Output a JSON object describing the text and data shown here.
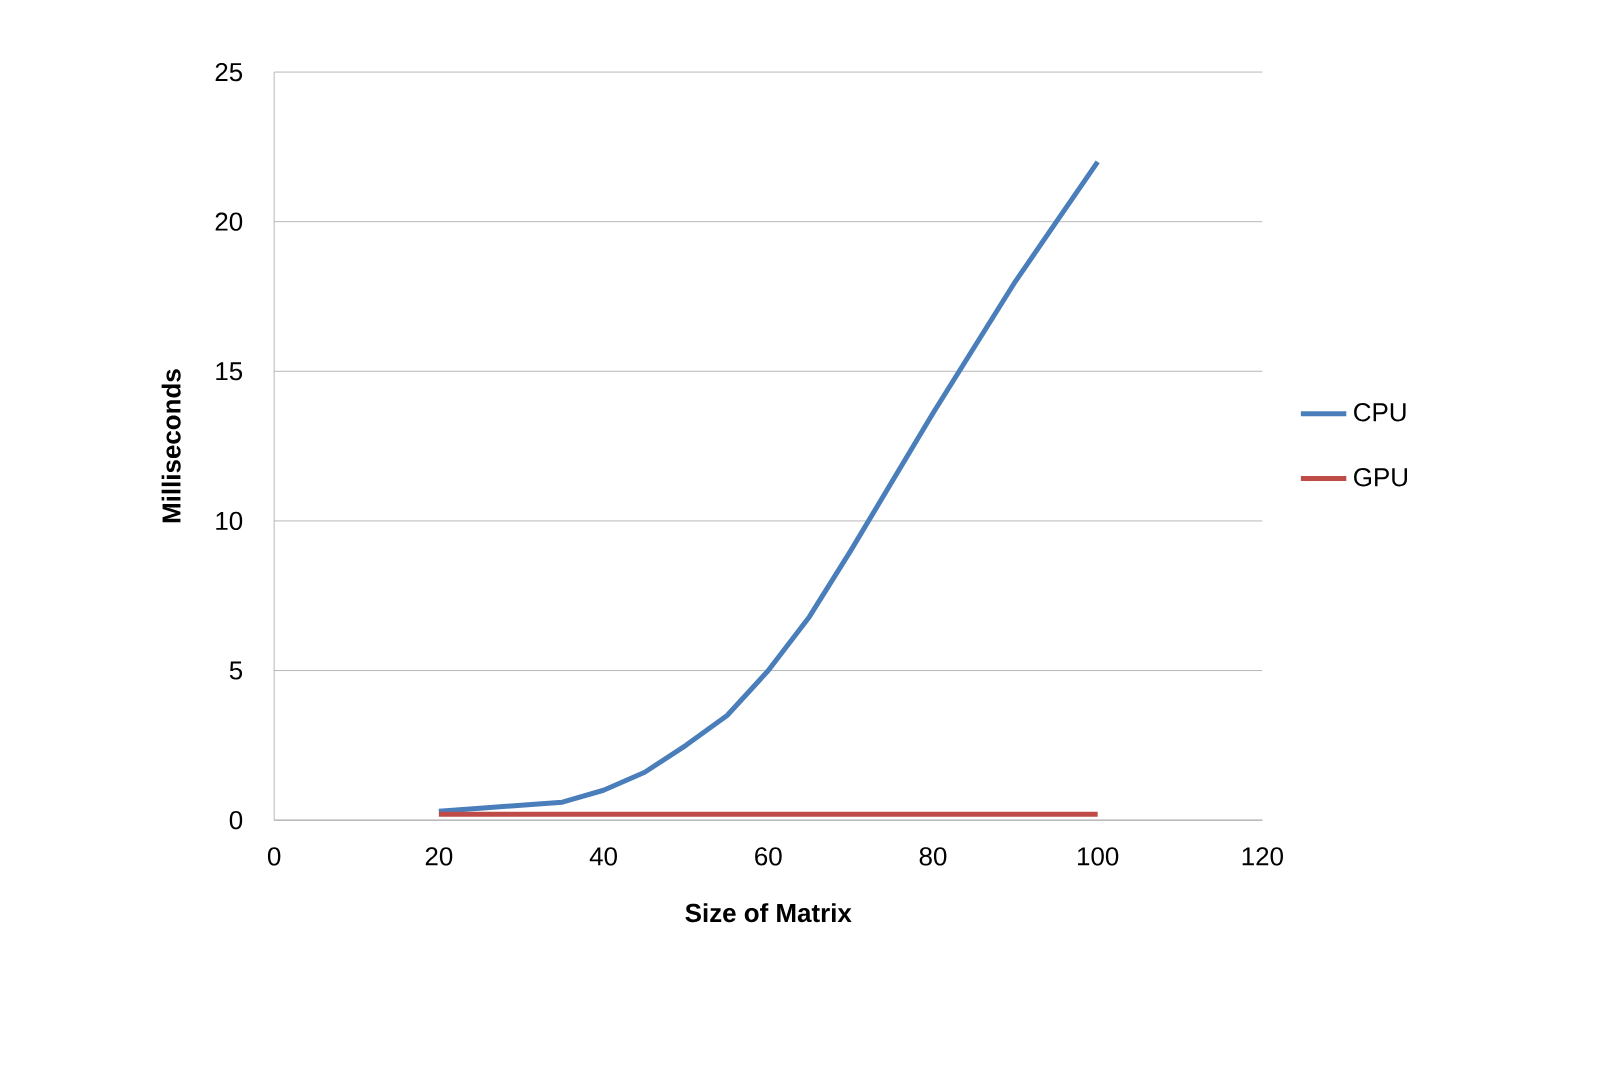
{
  "chart_data": {
    "type": "line",
    "xlabel": "Size of Matrix",
    "ylabel": "Milliseconds",
    "xlim": [
      0,
      120
    ],
    "xticks": [
      0,
      20,
      40,
      60,
      80,
      100,
      120
    ],
    "ylim": [
      0,
      25
    ],
    "yticks": [
      0,
      5,
      10,
      15,
      20,
      25
    ],
    "grid": "y",
    "legend": "right",
    "marker": "none",
    "x": [
      20,
      25,
      30,
      35,
      40,
      45,
      50,
      55,
      60,
      65,
      70,
      75,
      80,
      85,
      90,
      95,
      100
    ],
    "series": [
      {
        "name": "CPU",
        "color": "#4a7ebb",
        "values": [
          0.3,
          0.4,
          0.5,
          0.6,
          1.0,
          1.6,
          2.5,
          3.5,
          5.0,
          6.8,
          9.0,
          11.3,
          13.6,
          15.8,
          18.0,
          20.0,
          22.0
        ]
      },
      {
        "name": "GPU",
        "color": "#be4b48",
        "values": [
          0.2,
          0.2,
          0.2,
          0.2,
          0.2,
          0.2,
          0.2,
          0.2,
          0.2,
          0.2,
          0.2,
          0.2,
          0.2,
          0.2,
          0.2,
          0.2,
          0.2
        ]
      }
    ]
  }
}
